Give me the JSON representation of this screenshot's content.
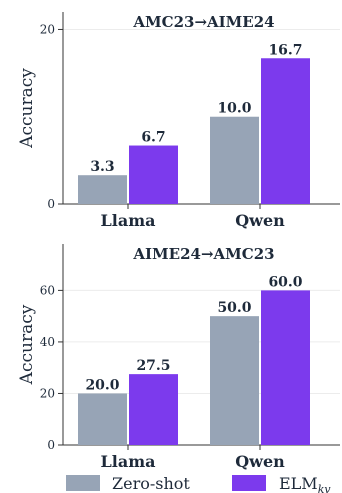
{
  "chart_data": [
    {
      "type": "bar",
      "title": "AMC23→AIME24",
      "ylabel": "Accuracy",
      "categories": [
        "Llama",
        "Qwen"
      ],
      "ylim": [
        0,
        22
      ],
      "yticks": [
        0,
        20
      ],
      "series": [
        {
          "name": "Zero-shot",
          "values": [
            3.3,
            10.0
          ],
          "labels": [
            "3.3",
            "10.0"
          ]
        },
        {
          "name": "ELM_kv",
          "values": [
            6.7,
            16.7
          ],
          "labels": [
            "6.7",
            "16.7"
          ]
        }
      ]
    },
    {
      "type": "bar",
      "title": "AIME24→AMC23",
      "ylabel": "Accuracy",
      "categories": [
        "Llama",
        "Qwen"
      ],
      "ylim": [
        0,
        78
      ],
      "yticks": [
        0,
        20,
        40,
        60
      ],
      "series": [
        {
          "name": "Zero-shot",
          "values": [
            20.0,
            50.0
          ],
          "labels": [
            "20.0",
            "50.0"
          ]
        },
        {
          "name": "ELM_kv",
          "values": [
            27.5,
            60.0
          ],
          "labels": [
            "27.5",
            "60.0"
          ]
        }
      ]
    }
  ],
  "legend": {
    "position": "bottom",
    "items": [
      {
        "label": "Zero-shot",
        "color": "#97a4b6"
      },
      {
        "label_main": "ELM",
        "label_sub": "kv",
        "color": "#7c3aed"
      }
    ]
  },
  "colors": {
    "zero_shot": "#97a4b6",
    "elm": "#7c3aed",
    "grid": "#ececec",
    "text": "#1e2a3a"
  }
}
